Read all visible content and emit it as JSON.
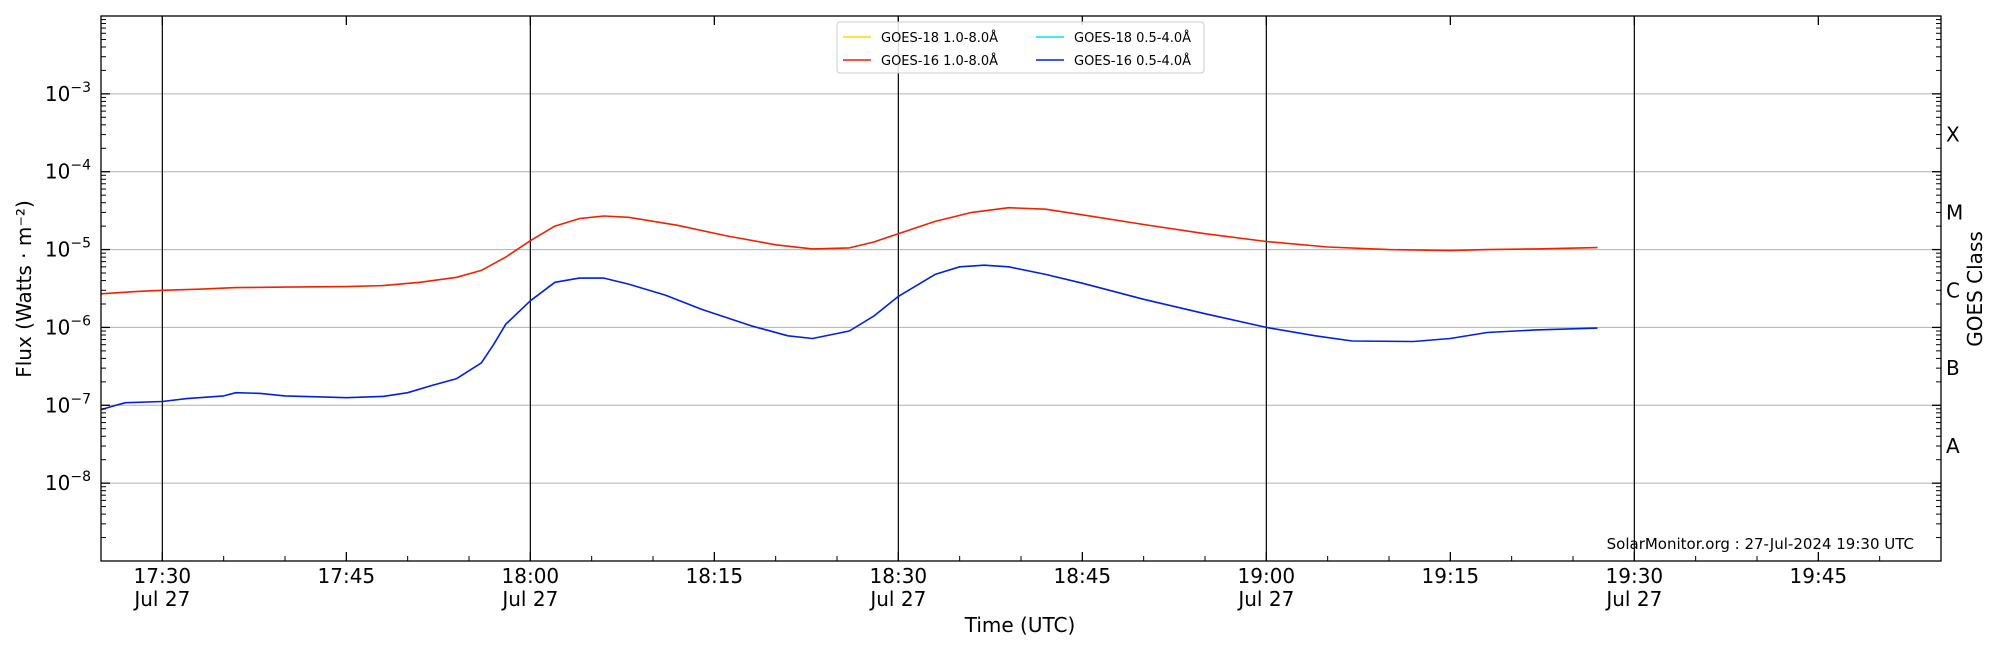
{
  "chart_data": {
    "type": "line",
    "xlabel": "Time (UTC)",
    "ylabel": "Flux (Watts · m⁻²)",
    "ylabel_right": "GOES Class",
    "y_scale": "log",
    "grid": "horizontal",
    "legend_position": "top-center",
    "credit": "SolarMonitor.org : 27-Jul-2024 19:30 UTC",
    "x_range": [
      "17:25",
      "19:55"
    ],
    "x_ticks": [
      {
        "time": "17:30",
        "label": "17:30",
        "date": "Jul 27"
      },
      {
        "time": "17:45",
        "label": "17:45",
        "date": ""
      },
      {
        "time": "18:00",
        "label": "18:00",
        "date": "Jul 27"
      },
      {
        "time": "18:15",
        "label": "18:15",
        "date": ""
      },
      {
        "time": "18:30",
        "label": "18:30",
        "date": "Jul 27"
      },
      {
        "time": "18:45",
        "label": "18:45",
        "date": ""
      },
      {
        "time": "19:00",
        "label": "19:00",
        "date": "Jul 27"
      },
      {
        "time": "19:15",
        "label": "19:15",
        "date": ""
      },
      {
        "time": "19:30",
        "label": "19:30",
        "date": "Jul 27"
      },
      {
        "time": "19:45",
        "label": "19:45",
        "date": ""
      }
    ],
    "vertical_lines": [
      "17:30",
      "18:00",
      "18:30",
      "19:00",
      "19:30"
    ],
    "y_range": [
      1e-09,
      0.01
    ],
    "y_ticks": [
      {
        "value": 1e-08,
        "base": "10",
        "exp": "−8"
      },
      {
        "value": 1e-07,
        "base": "10",
        "exp": "−7"
      },
      {
        "value": 1e-06,
        "base": "10",
        "exp": "−6"
      },
      {
        "value": 1e-05,
        "base": "10",
        "exp": "−5"
      },
      {
        "value": 0.0001,
        "base": "10",
        "exp": "−4"
      },
      {
        "value": 0.001,
        "base": "10",
        "exp": "−3"
      }
    ],
    "goes_classes": [
      {
        "label": "A",
        "value": 3e-08
      },
      {
        "label": "B",
        "value": 3e-07
      },
      {
        "label": "C",
        "value": 3e-06
      },
      {
        "label": "M",
        "value": 3e-05
      },
      {
        "label": "X",
        "value": 0.0003
      }
    ],
    "series": [
      {
        "name": "GOES-18 1.0-8.0Å",
        "color": "#ffd700",
        "points": []
      },
      {
        "name": "GOES-18 0.5-4.0Å",
        "color": "#00e5ee",
        "points": []
      },
      {
        "name": "GOES-16 1.0-8.0Å",
        "color": "#ee2200",
        "points": [
          [
            "17:25",
            2.7e-06
          ],
          [
            "17:28",
            2.9e-06
          ],
          [
            "17:30",
            3e-06
          ],
          [
            "17:33",
            3.1e-06
          ],
          [
            "17:36",
            3.25e-06
          ],
          [
            "17:40",
            3.3e-06
          ],
          [
            "17:45",
            3.35e-06
          ],
          [
            "17:48",
            3.45e-06
          ],
          [
            "17:51",
            3.8e-06
          ],
          [
            "17:54",
            4.4e-06
          ],
          [
            "17:56",
            5.4e-06
          ],
          [
            "17:58",
            8e-06
          ],
          [
            "18:00",
            1.3e-05
          ],
          [
            "18:02",
            2e-05
          ],
          [
            "18:04",
            2.5e-05
          ],
          [
            "18:06",
            2.7e-05
          ],
          [
            "18:08",
            2.6e-05
          ],
          [
            "18:12",
            2.05e-05
          ],
          [
            "18:16",
            1.5e-05
          ],
          [
            "18:20",
            1.15e-05
          ],
          [
            "18:23",
            1.02e-05
          ],
          [
            "18:26",
            1.05e-05
          ],
          [
            "18:28",
            1.25e-05
          ],
          [
            "18:30",
            1.6e-05
          ],
          [
            "18:33",
            2.3e-05
          ],
          [
            "18:36",
            3e-05
          ],
          [
            "18:39",
            3.45e-05
          ],
          [
            "18:42",
            3.3e-05
          ],
          [
            "18:45",
            2.8e-05
          ],
          [
            "18:50",
            2.1e-05
          ],
          [
            "18:55",
            1.6e-05
          ],
          [
            "19:00",
            1.27e-05
          ],
          [
            "19:05",
            1.08e-05
          ],
          [
            "19:10",
            1e-05
          ],
          [
            "19:15",
            9.7e-06
          ],
          [
            "19:18",
            1e-05
          ],
          [
            "19:22",
            1.02e-05
          ],
          [
            "19:27",
            1.06e-05
          ]
        ]
      },
      {
        "name": "GOES-16 0.5-4.0Å",
        "color": "#0022dd",
        "points": [
          [
            "17:25",
            8.8e-08
          ],
          [
            "17:26",
            9.8e-08
          ],
          [
            "17:27",
            1.08e-07
          ],
          [
            "17:30",
            1.12e-07
          ],
          [
            "17:32",
            1.22e-07
          ],
          [
            "17:35",
            1.32e-07
          ],
          [
            "17:36",
            1.45e-07
          ],
          [
            "17:38",
            1.42e-07
          ],
          [
            "17:40",
            1.32e-07
          ],
          [
            "17:43",
            1.28e-07
          ],
          [
            "17:45",
            1.25e-07
          ],
          [
            "17:48",
            1.3e-07
          ],
          [
            "17:50",
            1.45e-07
          ],
          [
            "17:52",
            1.8e-07
          ],
          [
            "17:54",
            2.2e-07
          ],
          [
            "17:56",
            3.5e-07
          ],
          [
            "17:57",
            6e-07
          ],
          [
            "17:58",
            1.1e-06
          ],
          [
            "18:00",
            2.2e-06
          ],
          [
            "18:02",
            3.8e-06
          ],
          [
            "18:04",
            4.3e-06
          ],
          [
            "18:06",
            4.3e-06
          ],
          [
            "18:08",
            3.6e-06
          ],
          [
            "18:11",
            2.6e-06
          ],
          [
            "18:14",
            1.7e-06
          ],
          [
            "18:18",
            1.05e-06
          ],
          [
            "18:21",
            7.8e-07
          ],
          [
            "18:23",
            7.2e-07
          ],
          [
            "18:26",
            9e-07
          ],
          [
            "18:28",
            1.4e-06
          ],
          [
            "18:30",
            2.5e-06
          ],
          [
            "18:33",
            4.8e-06
          ],
          [
            "18:35",
            6e-06
          ],
          [
            "18:37",
            6.3e-06
          ],
          [
            "18:39",
            6e-06
          ],
          [
            "18:42",
            4.8e-06
          ],
          [
            "18:45",
            3.7e-06
          ],
          [
            "18:50",
            2.3e-06
          ],
          [
            "18:55",
            1.5e-06
          ],
          [
            "19:00",
            1e-06
          ],
          [
            "19:04",
            7.8e-07
          ],
          [
            "19:07",
            6.7e-07
          ],
          [
            "19:12",
            6.6e-07
          ],
          [
            "19:15",
            7.2e-07
          ],
          [
            "19:18",
            8.6e-07
          ],
          [
            "19:22",
            9.3e-07
          ],
          [
            "19:27",
            9.8e-07
          ]
        ]
      }
    ],
    "legend_layout": [
      [
        "GOES-18 1.0-8.0Å",
        "GOES-18 0.5-4.0Å"
      ],
      [
        "GOES-16 1.0-8.0Å",
        "GOES-16 0.5-4.0Å"
      ]
    ]
  }
}
